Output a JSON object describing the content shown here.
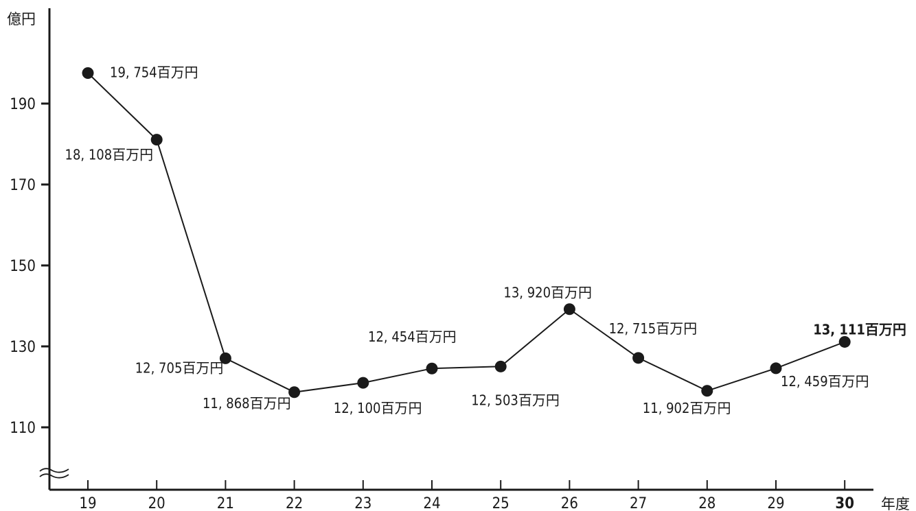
{
  "chart_data": {
    "type": "line",
    "ylabel": "億円",
    "xlabel": "年度",
    "categories": [
      "19",
      "20",
      "21",
      "22",
      "23",
      "24",
      "25",
      "26",
      "27",
      "28",
      "29",
      "30"
    ],
    "values": [
      197.54,
      181.08,
      127.05,
      118.68,
      121.0,
      124.54,
      125.03,
      139.2,
      127.15,
      119.02,
      124.59,
      131.11
    ],
    "data_labels": [
      "19, 754百万円",
      "18, 108百万円",
      "12, 705百万円",
      "11, 868百万円",
      "12, 100百万円",
      "12, 454百万円",
      "12, 503百万円",
      "13, 920百万円",
      "12, 715百万円",
      "11, 902百万円",
      "12, 459百万円",
      "13, 111百万円"
    ],
    "yticks": [
      110,
      130,
      150,
      170,
      190
    ],
    "ylim": [
      95,
      212
    ],
    "axis_break": true,
    "grid": false,
    "highlight_last": true,
    "colors": {
      "line": "#1a1a1a",
      "marker": "#1a1a1a",
      "axis": "#1a1a1a"
    }
  }
}
